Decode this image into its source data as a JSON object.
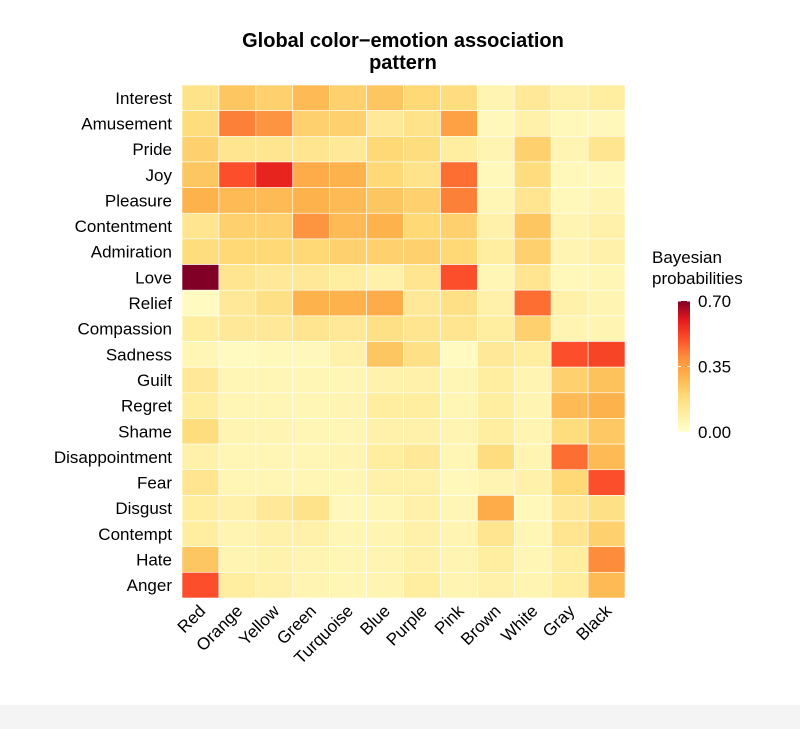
{
  "chart_data": {
    "type": "heatmap",
    "title": [
      "Global color−emotion association",
      "pattern"
    ],
    "rows": [
      "Interest",
      "Amusement",
      "Pride",
      "Joy",
      "Pleasure",
      "Contentment",
      "Admiration",
      "Love",
      "Relief",
      "Compassion",
      "Sadness",
      "Guilt",
      "Regret",
      "Shame",
      "Disappointment",
      "Fear",
      "Disgust",
      "Contempt",
      "Hate",
      "Anger"
    ],
    "columns": [
      "Red",
      "Orange",
      "Yellow",
      "Green",
      "Turquoise",
      "Blue",
      "Purple",
      "Pink",
      "Brown",
      "White",
      "Gray",
      "Black"
    ],
    "values": [
      [
        0.15,
        0.25,
        0.22,
        0.28,
        0.22,
        0.25,
        0.2,
        0.18,
        0.06,
        0.12,
        0.08,
        0.1
      ],
      [
        0.18,
        0.42,
        0.38,
        0.22,
        0.22,
        0.12,
        0.15,
        0.35,
        0.04,
        0.08,
        0.04,
        0.04
      ],
      [
        0.22,
        0.14,
        0.14,
        0.14,
        0.12,
        0.2,
        0.18,
        0.1,
        0.06,
        0.22,
        0.06,
        0.14
      ],
      [
        0.25,
        0.5,
        0.58,
        0.32,
        0.3,
        0.2,
        0.15,
        0.45,
        0.04,
        0.18,
        0.04,
        0.04
      ],
      [
        0.3,
        0.28,
        0.28,
        0.3,
        0.28,
        0.25,
        0.22,
        0.42,
        0.05,
        0.14,
        0.04,
        0.06
      ],
      [
        0.14,
        0.22,
        0.22,
        0.38,
        0.28,
        0.3,
        0.2,
        0.22,
        0.08,
        0.25,
        0.06,
        0.08
      ],
      [
        0.18,
        0.2,
        0.2,
        0.2,
        0.22,
        0.22,
        0.22,
        0.2,
        0.1,
        0.22,
        0.06,
        0.08
      ],
      [
        0.7,
        0.14,
        0.12,
        0.12,
        0.1,
        0.08,
        0.14,
        0.5,
        0.05,
        0.14,
        0.04,
        0.05
      ],
      [
        0.03,
        0.12,
        0.16,
        0.3,
        0.3,
        0.32,
        0.12,
        0.16,
        0.08,
        0.45,
        0.08,
        0.06
      ],
      [
        0.1,
        0.12,
        0.12,
        0.14,
        0.12,
        0.16,
        0.14,
        0.14,
        0.1,
        0.22,
        0.06,
        0.06
      ],
      [
        0.05,
        0.03,
        0.04,
        0.04,
        0.08,
        0.25,
        0.16,
        0.03,
        0.12,
        0.1,
        0.5,
        0.52
      ],
      [
        0.12,
        0.05,
        0.05,
        0.05,
        0.05,
        0.07,
        0.08,
        0.05,
        0.1,
        0.06,
        0.22,
        0.26
      ],
      [
        0.1,
        0.05,
        0.05,
        0.05,
        0.06,
        0.1,
        0.1,
        0.05,
        0.1,
        0.06,
        0.28,
        0.3
      ],
      [
        0.18,
        0.06,
        0.06,
        0.05,
        0.05,
        0.08,
        0.08,
        0.06,
        0.1,
        0.06,
        0.18,
        0.24
      ],
      [
        0.08,
        0.05,
        0.05,
        0.05,
        0.06,
        0.1,
        0.12,
        0.05,
        0.18,
        0.06,
        0.45,
        0.28
      ],
      [
        0.14,
        0.05,
        0.05,
        0.05,
        0.05,
        0.08,
        0.08,
        0.04,
        0.06,
        0.08,
        0.2,
        0.5
      ],
      [
        0.1,
        0.08,
        0.12,
        0.15,
        0.04,
        0.05,
        0.08,
        0.05,
        0.32,
        0.04,
        0.12,
        0.16
      ],
      [
        0.1,
        0.06,
        0.08,
        0.08,
        0.05,
        0.06,
        0.08,
        0.06,
        0.14,
        0.05,
        0.14,
        0.22
      ],
      [
        0.25,
        0.06,
        0.07,
        0.06,
        0.05,
        0.06,
        0.08,
        0.06,
        0.1,
        0.05,
        0.1,
        0.4
      ],
      [
        0.5,
        0.1,
        0.08,
        0.06,
        0.05,
        0.06,
        0.1,
        0.06,
        0.08,
        0.06,
        0.1,
        0.28
      ]
    ],
    "legend_title": [
      "Bayesian",
      "probabilities"
    ],
    "clim": [
      0,
      0.7
    ],
    "cticks": [
      {
        "value": 0,
        "label": "0.00"
      },
      0.35,
      {
        "value": 0.7,
        "label": "0.70"
      }
    ],
    "colors": [
      "#ffffcc",
      "#ffeda0",
      "#fed976",
      "#feb24c",
      "#fd8d3c",
      "#fc4e2a",
      "#e31a1c",
      "#800026"
    ]
  }
}
